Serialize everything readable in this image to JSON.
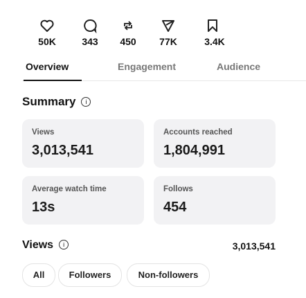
{
  "stats": [
    "50K",
    "343",
    "450",
    "77K",
    "3.4K"
  ],
  "tabs": [
    "Overview",
    "Engagement",
    "Audience"
  ],
  "summary": {
    "title": "Summary",
    "cards": [
      {
        "label": "Views",
        "value": "3,013,541"
      },
      {
        "label": "Accounts reached",
        "value": "1,804,991"
      },
      {
        "label": "Average watch time",
        "value": "13s"
      },
      {
        "label": "Follows",
        "value": "454"
      }
    ]
  },
  "views": {
    "title": "Views",
    "value": "3,013,541"
  },
  "filters": [
    "All",
    "Followers",
    "Non-followers"
  ]
}
